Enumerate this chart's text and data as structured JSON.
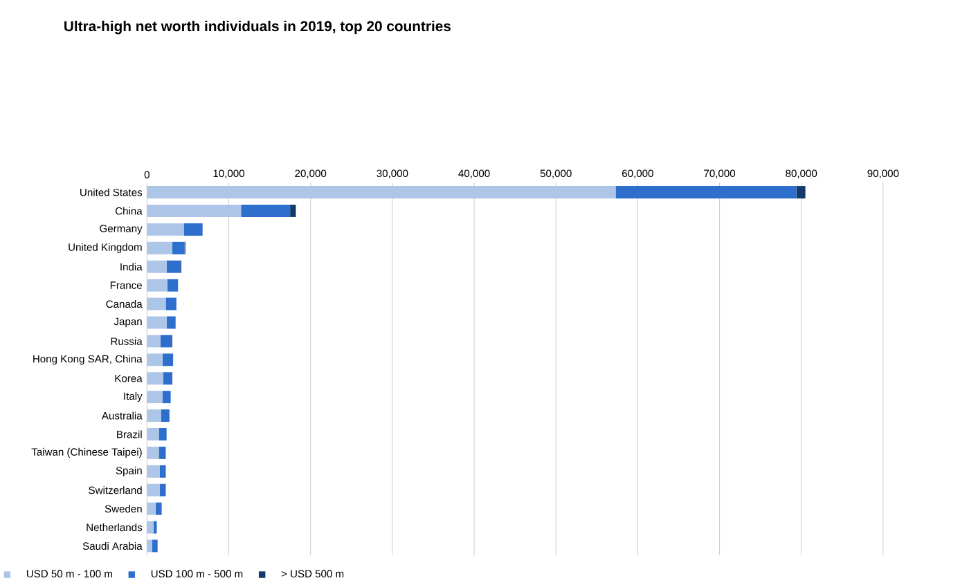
{
  "chart_data": {
    "type": "bar",
    "orientation": "horizontal",
    "stacked": true,
    "title": "Ultra-high net worth individuals in 2019, top 20 countries",
    "categories": [
      "United States",
      "China",
      "Germany",
      "United Kingdom",
      "India",
      "France",
      "Canada",
      "Japan",
      "Russia",
      "Hong Kong SAR, China",
      "Korea",
      "Italy",
      "Australia",
      "Brazil",
      "Taiwan (Chinese Taipei)",
      "Spain",
      "Switzerland",
      "Sweden",
      "Netherlands",
      "Saudi Arabia"
    ],
    "series": [
      {
        "name": "USD 50 m - 100 m",
        "color": "#adc6e8",
        "values": [
          57300,
          11500,
          4500,
          3100,
          2400,
          2500,
          2300,
          2400,
          1650,
          1900,
          2000,
          1900,
          1750,
          1450,
          1450,
          1550,
          1550,
          1050,
          800,
          650
        ]
      },
      {
        "name": "USD 100 m - 500 m",
        "color": "#2e6fce",
        "values": [
          22100,
          6000,
          2300,
          1500,
          1700,
          1300,
          1300,
          1100,
          1350,
          1300,
          1000,
          1000,
          1000,
          950,
          850,
          750,
          750,
          750,
          400,
          650
        ]
      },
      {
        "name": "> USD 500 m",
        "color": "#143a6b",
        "values": [
          1100,
          700,
          null,
          100,
          100,
          null,
          null,
          null,
          100,
          null,
          100,
          null,
          null,
          null,
          null,
          null,
          null,
          null,
          null,
          null
        ]
      }
    ],
    "xlim": [
      0,
      90000
    ],
    "xticks": [
      0,
      {
        "value": 10000,
        "label": "10,000"
      },
      {
        "value": 20000,
        "label": "20,000"
      },
      {
        "value": 30000,
        "label": "30,000"
      },
      {
        "value": 40000,
        "label": "40,000"
      },
      {
        "value": 50000,
        "label": "50,000"
      },
      {
        "value": 60000,
        "label": "60,000"
      },
      {
        "value": 70000,
        "label": "70,000"
      },
      {
        "value": 80000,
        "label": "80,000"
      },
      {
        "value": 90000,
        "label": "90,000"
      }
    ],
    "grid": "x",
    "legend": "bottom"
  }
}
